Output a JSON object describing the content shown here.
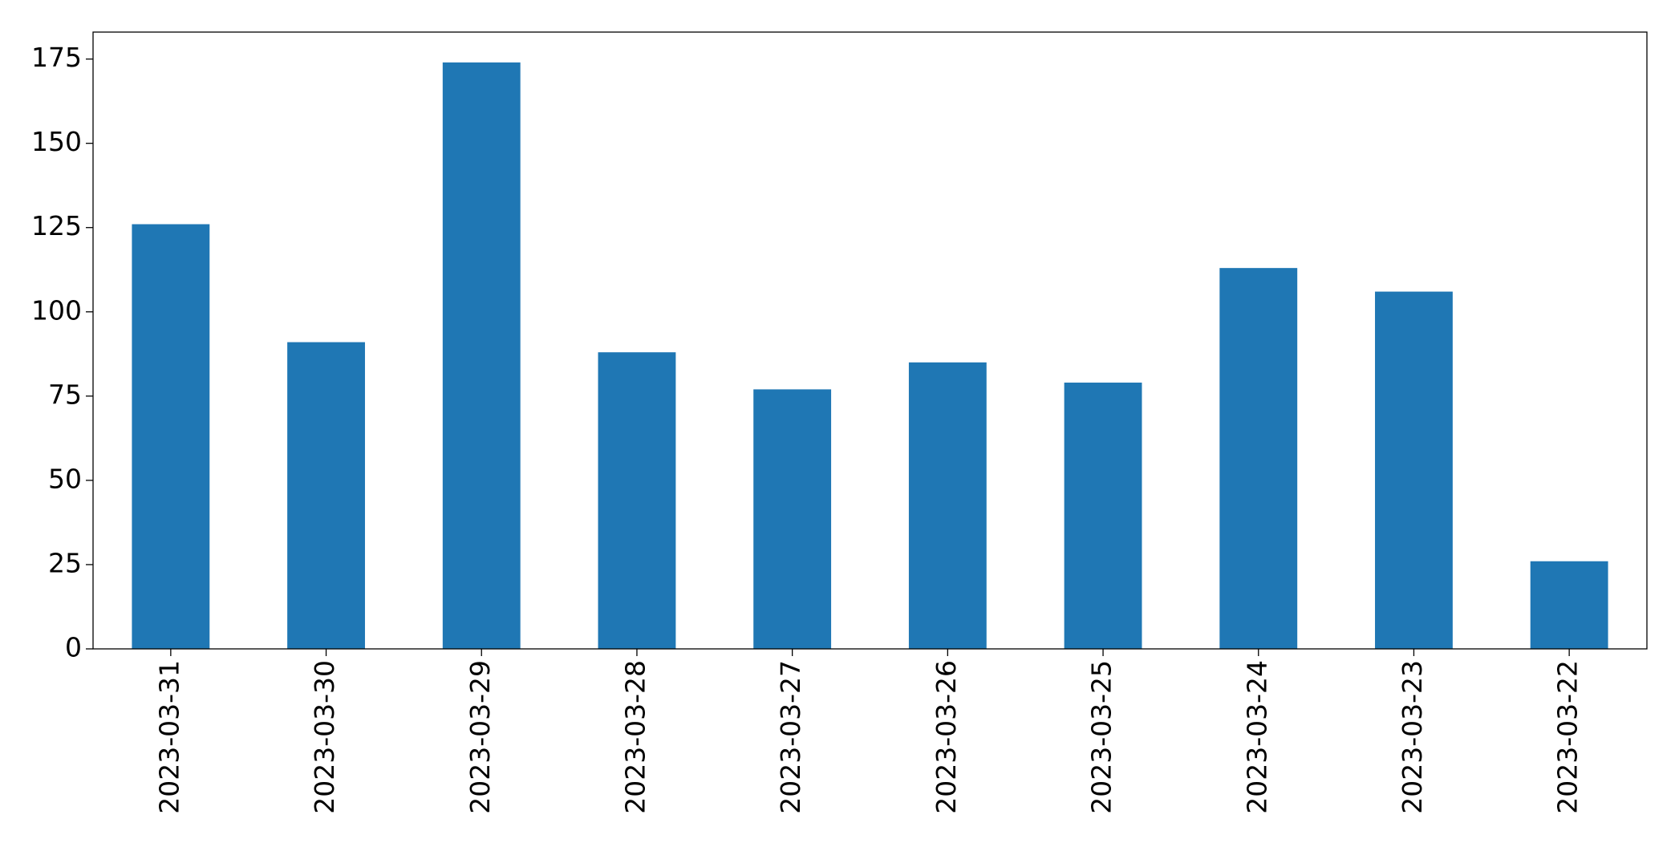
{
  "chart_data": {
    "type": "bar",
    "categories": [
      "2023-03-31",
      "2023-03-30",
      "2023-03-29",
      "2023-03-28",
      "2023-03-27",
      "2023-03-26",
      "2023-03-25",
      "2023-03-24",
      "2023-03-23",
      "2023-03-22"
    ],
    "values": [
      126,
      91,
      174,
      88,
      77,
      85,
      79,
      113,
      106,
      26
    ],
    "color": "#1f77b4",
    "ylim": [
      0,
      183
    ],
    "yticks": [
      0,
      25,
      50,
      75,
      100,
      125,
      150,
      175
    ],
    "grid": false
  }
}
